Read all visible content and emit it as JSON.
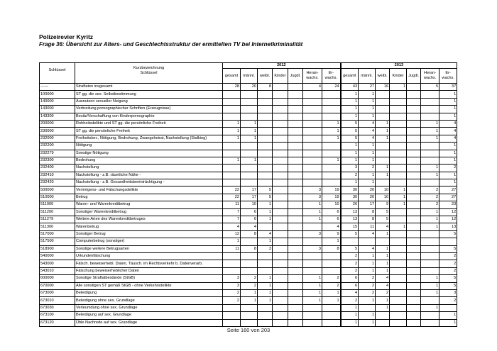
{
  "title": "Polizeirevier Kyritz",
  "subtitle": "Frage 36: Übersicht zur Alters- und Geschlechtsstruktur der ermittelten TV bei Internetkriminalität",
  "table": {
    "col_key": "Schlüssel",
    "col_desc_1": "Kurzbezeichnung",
    "col_desc_2": "Schlüssel",
    "years": [
      "2012",
      "2013"
    ],
    "subcols": [
      [
        "gesamt"
      ],
      [
        "männl."
      ],
      [
        "weibl."
      ],
      [
        "Kinder"
      ],
      [
        "Jugdl."
      ],
      [
        "Heran-",
        "wachs."
      ],
      [
        "Er-",
        "wachs."
      ]
    ],
    "rows": [
      {
        "key": "------",
        "desc": "Straftaten insgesamt",
        "v": [
          "28",
          "20",
          "8",
          "",
          "",
          "4",
          "24",
          "43",
          "27",
          "16",
          "1",
          "",
          "5",
          "37"
        ]
      },
      {
        "key": "100000",
        "desc": "ST gg. die sex. Selbstbestimmung",
        "v": [
          "",
          "",
          "",
          "",
          "",
          "",
          "",
          "1",
          "1",
          "",
          "",
          "",
          "",
          "1"
        ]
      },
      {
        "key": "140000",
        "desc": "Ausnutzen sexueller Neigung",
        "v": [
          "",
          "",
          "",
          "",
          "",
          "",
          "",
          "1",
          "1",
          "",
          "",
          "",
          "",
          "1"
        ]
      },
      {
        "key": "143000",
        "desc": "Verbreitung pornographischer Schriften (Erzeugnisse)",
        "v": [
          "",
          "",
          "",
          "",
          "",
          "",
          "",
          "1",
          "1",
          "",
          "",
          "",
          "",
          "1"
        ]
      },
      {
        "key": "143300",
        "desc": "Besitz/Verschaffung von Kinderpornographie",
        "v": [
          "",
          "",
          "",
          "",
          "",
          "",
          "",
          "1",
          "1",
          "",
          "",
          "",
          "",
          "1"
        ]
      },
      {
        "key": "200000",
        "desc": "Rohheitsdelikte und ST gg. die persönliche Freiheit",
        "v": [
          "1",
          "1",
          "",
          "",
          "",
          "",
          "1",
          "5",
          "4",
          "1",
          "",
          "",
          "1",
          "4"
        ]
      },
      {
        "key": "230000",
        "desc": "ST gg. die persönliche Freiheit",
        "v": [
          "1",
          "1",
          "",
          "",
          "",
          "",
          "1",
          "5",
          "4",
          "1",
          "",
          "",
          "1",
          "4"
        ]
      },
      {
        "key": "232000",
        "desc": "Freiheitsber., Nötigung, Bedrohung, Zwangsheirat, Nachstellung (Stalking)",
        "v": [
          "1",
          "1",
          "",
          "",
          "",
          "",
          "1",
          "5",
          "4",
          "1",
          "",
          "",
          "1",
          "4"
        ]
      },
      {
        "key": "232200",
        "desc": "Nötigung",
        "v": [
          "",
          "",
          "",
          "",
          "",
          "",
          "",
          "1",
          "1",
          "",
          "",
          "",
          "",
          "1"
        ]
      },
      {
        "key": "232279",
        "desc": "Sonstige Nötigung",
        "v": [
          "",
          "",
          "",
          "",
          "",
          "",
          "",
          "1",
          "1",
          "",
          "",
          "",
          "",
          "1"
        ]
      },
      {
        "key": "232300",
        "desc": "Bedrohung",
        "v": [
          "1",
          "1",
          "",
          "",
          "",
          "",
          "1",
          "1",
          "1",
          "",
          "",
          "",
          "",
          "1"
        ]
      },
      {
        "key": "232400",
        "desc": "Nachstellung",
        "v": [
          "",
          "",
          "",
          "",
          "",
          "",
          "",
          "3",
          "2",
          "1",
          "",
          "",
          "1",
          "2"
        ]
      },
      {
        "key": "232410",
        "desc": "Nachstellung - z.B. räumliche Nähe -",
        "v": [
          "",
          "",
          "",
          "",
          "",
          "",
          "",
          "2",
          "1",
          "1",
          "",
          "",
          "1",
          "1"
        ]
      },
      {
        "key": "232420",
        "desc": "Nachstellung - z.B. Gesundheitsbeeinträchtigung -",
        "v": [
          "",
          "",
          "",
          "",
          "",
          "",
          "",
          "1",
          "1",
          "",
          "",
          "",
          "",
          "1"
        ]
      },
      {
        "key": "500000",
        "desc": "Vermögens- und Fälschungsdelikte",
        "v": [
          "22",
          "17",
          "5",
          "",
          "",
          "3",
          "19",
          "30",
          "20",
          "10",
          "1",
          "",
          "2",
          "27"
        ]
      },
      {
        "key": "510000",
        "desc": "Betrug",
        "v": [
          "22",
          "17",
          "5",
          "",
          "",
          "3",
          "19",
          "30",
          "20",
          "10",
          "1",
          "",
          "2",
          "27"
        ]
      },
      {
        "key": "511000",
        "desc": "Waren- und Warenkreditbetrug",
        "v": [
          "11",
          "10",
          "1",
          "",
          "",
          "1",
          "10",
          "26",
          "17",
          "9",
          "1",
          "",
          "2",
          "23"
        ]
      },
      {
        "key": "511200",
        "desc": "Sonstiger Warenkreditbetrug",
        "v": [
          "7",
          "6",
          "1",
          "",
          "",
          "1",
          "6",
          "13",
          "8",
          "5",
          "",
          "",
          "1",
          "12"
        ]
      },
      {
        "key": "511279",
        "desc": "Weitere Arten des Warenkreditbetruges",
        "v": [
          "7",
          "6",
          "1",
          "",
          "",
          "1",
          "6",
          "13",
          "8",
          "5",
          "",
          "",
          "1",
          "12"
        ]
      },
      {
        "key": "511300",
        "desc": "Warenbetrug",
        "v": [
          "4",
          "4",
          "",
          "",
          "",
          "",
          "4",
          "15",
          "11",
          "4",
          "1",
          "",
          "1",
          "13"
        ]
      },
      {
        "key": "517000",
        "desc": "Sonstiger Betrug",
        "v": [
          "12",
          "8",
          "4",
          "",
          "",
          "3",
          "9",
          "5",
          "4",
          "1",
          "",
          "",
          "",
          "5"
        ]
      },
      {
        "key": "517500",
        "desc": "Computerbetrug (sonstiger)",
        "v": [
          "1",
          "",
          "1",
          "",
          "",
          "",
          "1",
          "",
          "",
          "",
          "",
          "",
          "",
          ""
        ]
      },
      {
        "key": "518900",
        "desc": "Sonstige weitere Betrugsarten",
        "v": [
          "11",
          "8",
          "3",
          "",
          "",
          "3",
          "8",
          "5",
          "4",
          "1",
          "",
          "",
          "",
          "5"
        ]
      },
      {
        "key": "540000",
        "desc": "Urkundenfälschung",
        "v": [
          "",
          "",
          "",
          "",
          "",
          "",
          "",
          "2",
          "1",
          "1",
          "",
          "",
          "",
          "2"
        ]
      },
      {
        "key": "543000",
        "desc": "Fälsch. beweiserhebl. Daten, Täusch. im Rechtsverkehr b. Datenverarb.",
        "v": [
          "",
          "",
          "",
          "",
          "",
          "",
          "",
          "2",
          "1",
          "1",
          "",
          "",
          "",
          "2"
        ]
      },
      {
        "key": "543010",
        "desc": "Fälschung beweiserheblicher Daten",
        "v": [
          "",
          "",
          "",
          "",
          "",
          "",
          "",
          "2",
          "1",
          "1",
          "",
          "",
          "",
          "2"
        ]
      },
      {
        "key": "600000",
        "desc": "Sonstige Straftatbestände (StGB)",
        "v": [
          "3",
          "2",
          "1",
          "",
          "",
          "1",
          "2",
          "6",
          "2",
          "4",
          "",
          "",
          "1",
          "5"
        ]
      },
      {
        "key": "670000",
        "desc": "Alle sonstigen ST gemäß StGB - ohne Verkehrsdelikte",
        "v": [
          "3",
          "2",
          "1",
          "",
          "",
          "1",
          "2",
          "6",
          "2",
          "4",
          "",
          "",
          "1",
          "5"
        ]
      },
      {
        "key": "673000",
        "desc": "Beleidigung",
        "v": [
          "2",
          "1",
          "1",
          "",
          "",
          "1",
          "1",
          "4",
          "2",
          "2",
          "",
          "",
          "1",
          "3"
        ]
      },
      {
        "key": "673010",
        "desc": "Beleidigung ohne sex. Grundlage",
        "v": [
          "2",
          "1",
          "1",
          "",
          "",
          "1",
          "1",
          "2",
          "1",
          "1",
          "",
          "",
          "",
          "2"
        ]
      },
      {
        "key": "673030",
        "desc": "Verleumdung ohne sex. Grundlage",
        "v": [
          "",
          "",
          "",
          "",
          "",
          "",
          "",
          "1",
          "",
          "1",
          "",
          "",
          "1",
          ""
        ]
      },
      {
        "key": "673100",
        "desc": "Beleidigung auf sex. Grundlage",
        "v": [
          "",
          "",
          "",
          "",
          "",
          "",
          "",
          "1",
          "1",
          "",
          "",
          "",
          "",
          "1"
        ]
      },
      {
        "key": "673120",
        "desc": "Üble Nachrede auf sex. Grundlage",
        "v": [
          "",
          "",
          "",
          "",
          "",
          "",
          "",
          "1",
          "1",
          "",
          "",
          "",
          "",
          "1"
        ]
      }
    ]
  },
  "footer": "Seite 160 von 203"
}
